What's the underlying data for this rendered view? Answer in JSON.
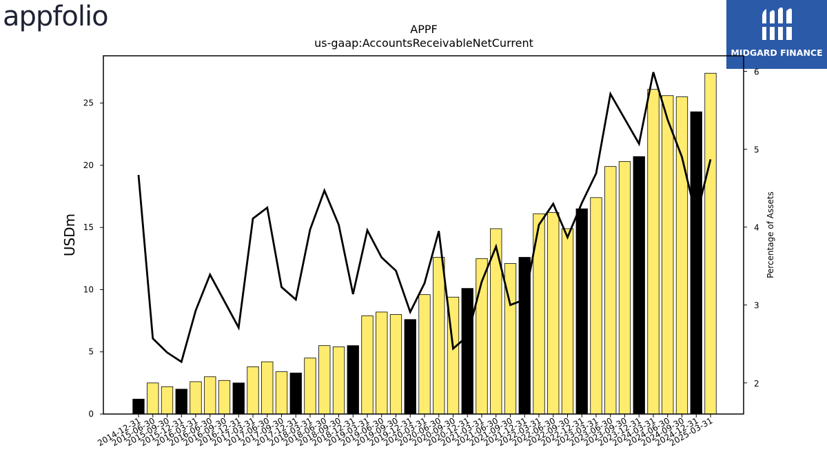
{
  "brand": {
    "left_logo_text": "appfolio",
    "right_logo_text": "MIDGARD FINANCE",
    "right_logo_bg": "#2b5aa9"
  },
  "chart_data": {
    "type": "bar",
    "title": "APPF",
    "subtitle": "us-gaap:AccountsReceivableNetCurrent",
    "ylabel": "USDm",
    "y2label": "Percentage of Assets",
    "xlabel": "",
    "ylim": [
      0,
      28.8
    ],
    "y2lim": [
      1.6,
      6.2
    ],
    "yticks": [
      0,
      5,
      10,
      15,
      20,
      25
    ],
    "y2ticks": [
      2,
      3,
      4,
      5,
      6
    ],
    "grid": false,
    "colors": {
      "q4_bar": "#000000",
      "other_bar": "#ffec6e",
      "line": "#000000"
    },
    "categories": [
      "2014-12-31",
      "2015-06-30",
      "2015-09-30",
      "2015-12-31",
      "2016-03-31",
      "2016-06-30",
      "2016-09-30",
      "2016-12-31",
      "2017-03-31",
      "2017-06-30",
      "2017-09-30",
      "2017-12-31",
      "2018-03-31",
      "2018-06-30",
      "2018-09-30",
      "2018-12-31",
      "2019-03-31",
      "2019-06-30",
      "2019-09-30",
      "2019-12-31",
      "2020-03-31",
      "2020-06-30",
      "2020-09-30",
      "2020-12-31",
      "2021-03-31",
      "2021-06-30",
      "2021-09-30",
      "2021-12-31",
      "2022-03-31",
      "2022-06-30",
      "2022-09-30",
      "2022-12-31",
      "2023-03-31",
      "2023-06-30",
      "2023-09-30",
      "2023-12-31",
      "2024-03-31",
      "2024-06-30",
      "2024-09-30",
      "2024-12-31",
      "2025-03-31"
    ],
    "series": [
      {
        "kind": "bar",
        "axis": "left",
        "values": [
          1.2,
          2.5,
          2.2,
          2.0,
          2.6,
          3.0,
          2.7,
          2.5,
          3.8,
          4.2,
          3.4,
          3.3,
          4.5,
          5.5,
          5.4,
          5.5,
          7.9,
          8.2,
          8.0,
          7.6,
          9.6,
          12.6,
          9.4,
          10.1,
          12.5,
          14.9,
          12.1,
          12.6,
          16.1,
          16.2,
          14.9,
          16.5,
          17.4,
          19.9,
          20.3,
          20.7,
          26.1,
          25.6,
          25.5,
          24.3,
          27.4
        ]
      },
      {
        "kind": "line",
        "axis": "right",
        "values": [
          4.67,
          2.57,
          2.39,
          2.27,
          2.93,
          3.39,
          3.05,
          2.71,
          4.11,
          4.25,
          3.23,
          3.07,
          3.97,
          4.47,
          4.03,
          3.14,
          3.96,
          3.61,
          3.44,
          2.91,
          3.28,
          3.95,
          2.44,
          2.6,
          3.3,
          3.75,
          3.0,
          3.07,
          4.03,
          4.3,
          3.87,
          4.31,
          4.69,
          5.71,
          5.39,
          5.07,
          5.99,
          5.38,
          4.9,
          4.13,
          4.87
        ]
      }
    ]
  }
}
